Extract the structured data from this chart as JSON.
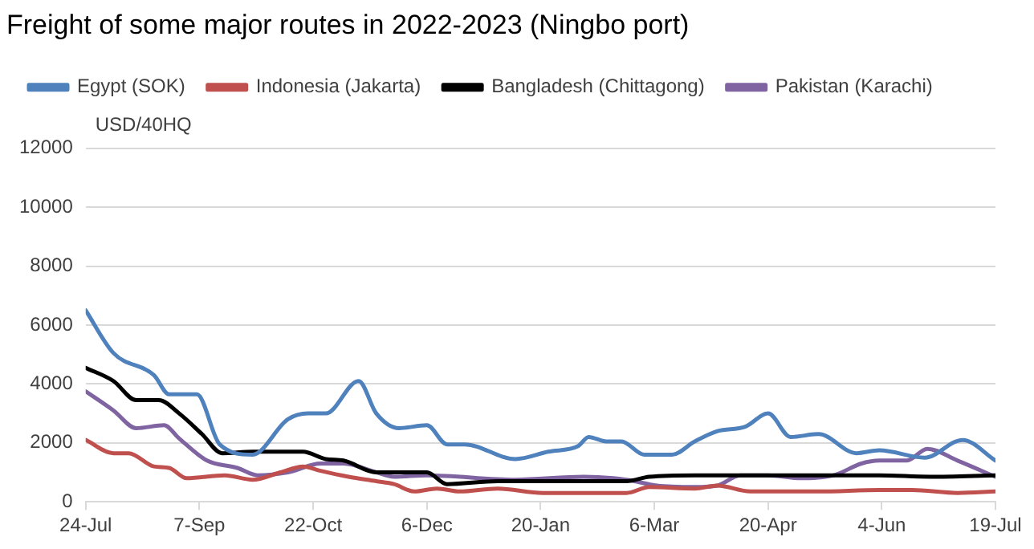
{
  "chart_data": {
    "type": "line",
    "title": "Freight of some major routes in 2022-2023 (Ningbo port)",
    "ylabel": "USD/40HQ",
    "xlim": [
      "2022-07-24",
      "2023-07-19"
    ],
    "xticks": [
      {
        "value": "2022-07-24",
        "label": "24-Jul"
      },
      {
        "value": "2022-09-07",
        "label": "7-Sep"
      },
      {
        "value": "2022-10-22",
        "label": "22-Oct"
      },
      {
        "value": "2022-12-06",
        "label": "6-Dec"
      },
      {
        "value": "2023-01-20",
        "label": "20-Jan"
      },
      {
        "value": "2023-03-06",
        "label": "6-Mar"
      },
      {
        "value": "2023-04-20",
        "label": "20-Apr"
      },
      {
        "value": "2023-06-04",
        "label": "4-Jun"
      },
      {
        "value": "2023-07-19",
        "label": "19-Jul"
      }
    ],
    "ylim": [
      0,
      12000
    ],
    "yticks": [
      0,
      2000,
      4000,
      6000,
      8000,
      10000,
      12000
    ],
    "grid": "y",
    "legend": "top",
    "marker": "none",
    "line_style": "solid",
    "series": [
      {
        "name": "Egypt (SOK)",
        "color": "#4f81bd",
        "x": [
          "2022-07-24",
          "2022-08-04",
          "2022-08-20",
          "2022-08-26",
          "2022-09-06",
          "2022-09-15",
          "2022-09-28",
          "2022-10-12",
          "2022-10-20",
          "2022-10-27",
          "2022-11-09",
          "2022-11-16",
          "2022-11-25",
          "2022-12-06",
          "2022-12-14",
          "2022-12-21",
          "2023-01-10",
          "2023-01-23",
          "2023-02-04",
          "2023-02-08",
          "2023-02-15",
          "2023-02-21",
          "2023-03-02",
          "2023-03-13",
          "2023-03-22",
          "2023-03-31",
          "2023-04-11",
          "2023-04-20",
          "2023-04-29",
          "2023-05-10",
          "2023-05-25",
          "2023-06-03",
          "2023-06-21",
          "2023-07-06",
          "2023-07-19"
        ],
        "values": [
          6500,
          5050,
          4300,
          3650,
          3650,
          1950,
          1600,
          2800,
          3000,
          3000,
          4100,
          3000,
          2500,
          2600,
          1950,
          1950,
          1450,
          1700,
          1900,
          2200,
          2050,
          2050,
          1600,
          1600,
          2050,
          2400,
          2550,
          3000,
          2200,
          2300,
          1650,
          1750,
          1500,
          2100,
          1400
        ]
      },
      {
        "name": "Indonesia (Jakarta)",
        "color": "#c0504d",
        "x": [
          "2022-07-24",
          "2022-08-04",
          "2022-08-10",
          "2022-08-20",
          "2022-08-26",
          "2022-09-02",
          "2022-09-17",
          "2022-09-28",
          "2022-10-09",
          "2022-10-18",
          "2022-10-25",
          "2022-11-05",
          "2022-11-16",
          "2022-11-23",
          "2022-12-01",
          "2022-12-10",
          "2022-12-19",
          "2023-01-03",
          "2023-01-21",
          "2023-02-06",
          "2023-02-23",
          "2023-03-04",
          "2023-03-22",
          "2023-03-31",
          "2023-04-13",
          "2023-05-10",
          "2023-06-03",
          "2023-06-16",
          "2023-07-04",
          "2023-07-19"
        ],
        "values": [
          2100,
          1650,
          1650,
          1200,
          1150,
          800,
          900,
          750,
          1000,
          1200,
          1050,
          850,
          700,
          600,
          350,
          450,
          350,
          450,
          300,
          300,
          300,
          500,
          450,
          550,
          350,
          350,
          400,
          400,
          300,
          350
        ]
      },
      {
        "name": "Bangladesh (Chittagong)",
        "color": "#000000",
        "x": [
          "2022-07-24",
          "2022-08-04",
          "2022-08-13",
          "2022-08-22",
          "2022-08-30",
          "2022-09-08",
          "2022-09-16",
          "2022-09-28",
          "2022-10-12",
          "2022-10-18",
          "2022-10-27",
          "2022-11-03",
          "2022-11-16",
          "2022-12-06",
          "2022-12-14",
          "2023-01-03",
          "2023-02-06",
          "2023-02-23",
          "2023-03-04",
          "2023-03-22",
          "2023-04-06",
          "2023-05-10",
          "2023-06-03",
          "2023-06-23",
          "2023-07-19"
        ],
        "values": [
          4550,
          4100,
          3450,
          3450,
          3000,
          2300,
          1650,
          1700,
          1700,
          1700,
          1450,
          1400,
          1000,
          1000,
          600,
          700,
          700,
          700,
          850,
          900,
          900,
          900,
          900,
          850,
          900
        ]
      },
      {
        "name": "Pakistan (Karachi)",
        "color": "#8064a2",
        "x": [
          "2022-07-24",
          "2022-08-04",
          "2022-08-13",
          "2022-08-24",
          "2022-08-30",
          "2022-09-10",
          "2022-09-22",
          "2022-09-30",
          "2022-10-12",
          "2022-10-25",
          "2022-11-03",
          "2022-11-16",
          "2022-11-23",
          "2022-12-06",
          "2023-01-10",
          "2023-02-06",
          "2023-02-23",
          "2023-03-07",
          "2023-03-22",
          "2023-03-31",
          "2023-04-09",
          "2023-04-20",
          "2023-05-03",
          "2023-05-16",
          "2023-05-27",
          "2023-06-03",
          "2023-06-14",
          "2023-06-22",
          "2023-07-04",
          "2023-07-19"
        ],
        "values": [
          3750,
          3100,
          2500,
          2600,
          2150,
          1400,
          1150,
          900,
          1000,
          1300,
          1300,
          1000,
          850,
          900,
          750,
          850,
          750,
          550,
          500,
          550,
          900,
          900,
          800,
          900,
          1300,
          1400,
          1400,
          1800,
          1400,
          850
        ]
      }
    ]
  }
}
